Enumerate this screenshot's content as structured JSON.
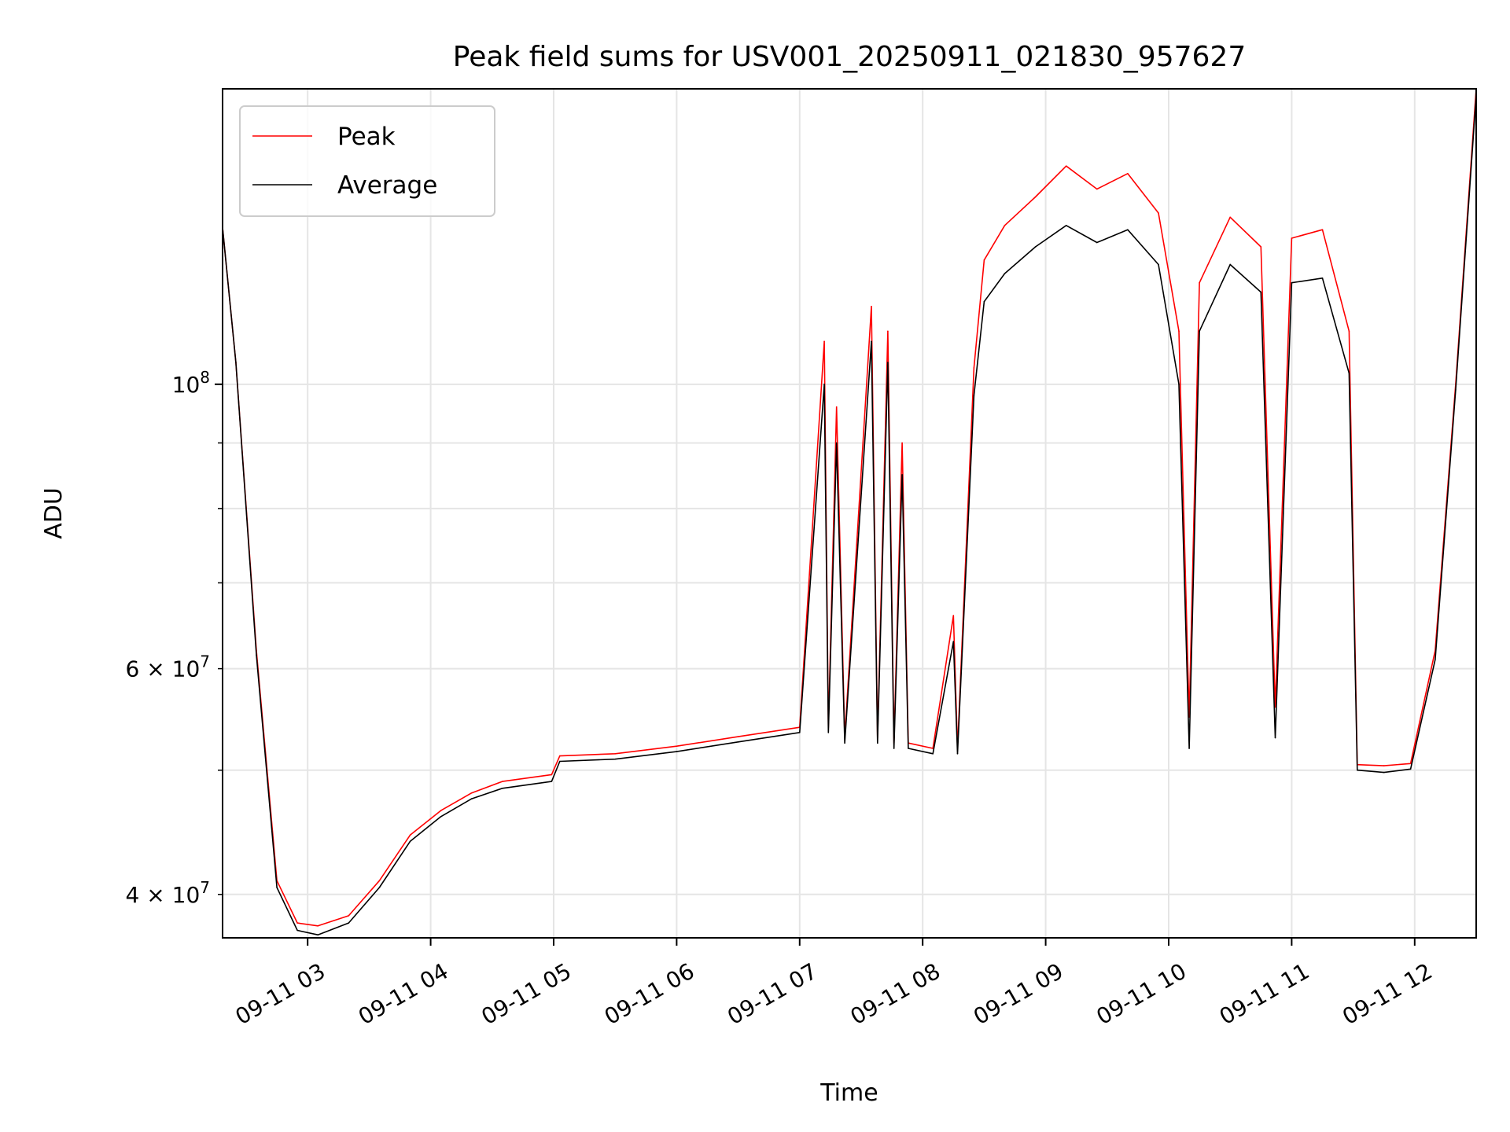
{
  "chart_data": {
    "type": "line",
    "title": "Peak field sums for USV001_20250911_021830_957627",
    "xlabel": "Time",
    "ylabel": "ADU",
    "yscale": "log",
    "xlim": [
      "2025-09-11T02:18:30",
      "2025-09-11T12:30:00"
    ],
    "ylim": [
      37000000,
      170000000
    ],
    "x_ticks": [
      {
        "t": "2025-09-11T03:00",
        "label": "09-11 03"
      },
      {
        "t": "2025-09-11T04:00",
        "label": "09-11 04"
      },
      {
        "t": "2025-09-11T05:00",
        "label": "09-11 05"
      },
      {
        "t": "2025-09-11T06:00",
        "label": "09-11 06"
      },
      {
        "t": "2025-09-11T07:00",
        "label": "09-11 07"
      },
      {
        "t": "2025-09-11T08:00",
        "label": "09-11 08"
      },
      {
        "t": "2025-09-11T09:00",
        "label": "09-11 09"
      },
      {
        "t": "2025-09-11T10:00",
        "label": "09-11 10"
      },
      {
        "t": "2025-09-11T11:00",
        "label": "09-11 11"
      },
      {
        "t": "2025-09-11T12:00",
        "label": "09-11 12"
      }
    ],
    "y_ticks_major": [
      {
        "value": 100000000,
        "base": "10",
        "exp": "8"
      }
    ],
    "y_ticks_minor": [
      {
        "value": 40000000,
        "mant": "4",
        "base": "10",
        "exp": "7"
      },
      {
        "value": 60000000,
        "mant": "6",
        "base": "10",
        "exp": "7"
      }
    ],
    "y_minor_unlabeled": [
      50000000,
      70000000,
      80000000,
      90000000
    ],
    "grid": true,
    "legend_position": "top-left",
    "series": [
      {
        "name": "Peak",
        "color": "#ff0000",
        "points": [
          [
            "2025-09-11T02:18",
            135000000
          ],
          [
            "2025-09-11T02:25",
            104000000
          ],
          [
            "2025-09-11T02:35",
            62000000
          ],
          [
            "2025-09-11T02:45",
            41000000
          ],
          [
            "2025-09-11T02:55",
            38000000
          ],
          [
            "2025-09-11T03:05",
            37800000
          ],
          [
            "2025-09-11T03:20",
            38500000
          ],
          [
            "2025-09-11T03:35",
            41000000
          ],
          [
            "2025-09-11T03:50",
            44500000
          ],
          [
            "2025-09-11T04:05",
            46500000
          ],
          [
            "2025-09-11T04:20",
            48000000
          ],
          [
            "2025-09-11T04:35",
            49000000
          ],
          [
            "2025-09-11T04:59",
            49600000
          ],
          [
            "2025-09-11T05:03",
            51300000
          ],
          [
            "2025-09-11T05:30",
            51500000
          ],
          [
            "2025-09-11T06:00",
            52200000
          ],
          [
            "2025-09-11T06:30",
            53100000
          ],
          [
            "2025-09-11T07:00",
            54000000
          ],
          [
            "2025-09-11T07:12",
            108000000
          ],
          [
            "2025-09-11T07:14",
            54000000
          ],
          [
            "2025-09-11T07:18",
            96000000
          ],
          [
            "2025-09-11T07:22",
            53000000
          ],
          [
            "2025-09-11T07:35",
            115000000
          ],
          [
            "2025-09-11T07:38",
            53000000
          ],
          [
            "2025-09-11T07:43",
            110000000
          ],
          [
            "2025-09-11T07:46",
            52500000
          ],
          [
            "2025-09-11T07:50",
            90000000
          ],
          [
            "2025-09-11T07:53",
            52500000
          ],
          [
            "2025-09-11T08:05",
            52000000
          ],
          [
            "2025-09-11T08:15",
            66000000
          ],
          [
            "2025-09-11T08:17",
            52000000
          ],
          [
            "2025-09-11T08:25",
            103000000
          ],
          [
            "2025-09-11T08:30",
            125000000
          ],
          [
            "2025-09-11T08:40",
            133000000
          ],
          [
            "2025-09-11T08:55",
            140000000
          ],
          [
            "2025-09-11T09:10",
            148000000
          ],
          [
            "2025-09-11T09:25",
            142000000
          ],
          [
            "2025-09-11T09:40",
            146000000
          ],
          [
            "2025-09-11T09:55",
            136000000
          ],
          [
            "2025-09-11T10:05",
            110000000
          ],
          [
            "2025-09-11T10:10",
            55000000
          ],
          [
            "2025-09-11T10:15",
            120000000
          ],
          [
            "2025-09-11T10:30",
            135000000
          ],
          [
            "2025-09-11T10:45",
            128000000
          ],
          [
            "2025-09-11T10:52",
            56000000
          ],
          [
            "2025-09-11T11:00",
            130000000
          ],
          [
            "2025-09-11T11:15",
            132000000
          ],
          [
            "2025-09-11T11:28",
            110000000
          ],
          [
            "2025-09-11T11:32",
            50500000
          ],
          [
            "2025-09-11T11:45",
            50400000
          ],
          [
            "2025-09-11T11:58",
            50600000
          ],
          [
            "2025-09-11T12:10",
            62000000
          ],
          [
            "2025-09-11T12:20",
            100000000
          ],
          [
            "2025-09-11T12:30",
            170000000
          ]
        ]
      },
      {
        "name": "Average",
        "color": "#000000",
        "points": [
          [
            "2025-09-11T02:18",
            135000000
          ],
          [
            "2025-09-11T02:25",
            104000000
          ],
          [
            "2025-09-11T02:35",
            61500000
          ],
          [
            "2025-09-11T02:45",
            40500000
          ],
          [
            "2025-09-11T02:55",
            37500000
          ],
          [
            "2025-09-11T03:05",
            37200000
          ],
          [
            "2025-09-11T03:20",
            38000000
          ],
          [
            "2025-09-11T03:35",
            40500000
          ],
          [
            "2025-09-11T03:50",
            44000000
          ],
          [
            "2025-09-11T04:05",
            46000000
          ],
          [
            "2025-09-11T04:20",
            47500000
          ],
          [
            "2025-09-11T04:35",
            48400000
          ],
          [
            "2025-09-11T04:59",
            49000000
          ],
          [
            "2025-09-11T05:03",
            50800000
          ],
          [
            "2025-09-11T05:30",
            51000000
          ],
          [
            "2025-09-11T06:00",
            51700000
          ],
          [
            "2025-09-11T06:30",
            52600000
          ],
          [
            "2025-09-11T07:00",
            53500000
          ],
          [
            "2025-09-11T07:12",
            100000000
          ],
          [
            "2025-09-11T07:14",
            53500000
          ],
          [
            "2025-09-11T07:18",
            90000000
          ],
          [
            "2025-09-11T07:22",
            52500000
          ],
          [
            "2025-09-11T07:35",
            108000000
          ],
          [
            "2025-09-11T07:38",
            52500000
          ],
          [
            "2025-09-11T07:43",
            104000000
          ],
          [
            "2025-09-11T07:46",
            52000000
          ],
          [
            "2025-09-11T07:50",
            85000000
          ],
          [
            "2025-09-11T07:53",
            52000000
          ],
          [
            "2025-09-11T08:05",
            51500000
          ],
          [
            "2025-09-11T08:15",
            63000000
          ],
          [
            "2025-09-11T08:17",
            51500000
          ],
          [
            "2025-09-11T08:25",
            98000000
          ],
          [
            "2025-09-11T08:30",
            116000000
          ],
          [
            "2025-09-11T08:40",
            122000000
          ],
          [
            "2025-09-11T08:55",
            128000000
          ],
          [
            "2025-09-11T09:10",
            133000000
          ],
          [
            "2025-09-11T09:25",
            129000000
          ],
          [
            "2025-09-11T09:40",
            132000000
          ],
          [
            "2025-09-11T09:55",
            124000000
          ],
          [
            "2025-09-11T10:05",
            100000000
          ],
          [
            "2025-09-11T10:10",
            52000000
          ],
          [
            "2025-09-11T10:15",
            110000000
          ],
          [
            "2025-09-11T10:30",
            124000000
          ],
          [
            "2025-09-11T10:45",
            118000000
          ],
          [
            "2025-09-11T10:52",
            53000000
          ],
          [
            "2025-09-11T11:00",
            120000000
          ],
          [
            "2025-09-11T11:15",
            121000000
          ],
          [
            "2025-09-11T11:28",
            102000000
          ],
          [
            "2025-09-11T11:32",
            50000000
          ],
          [
            "2025-09-11T11:45",
            49800000
          ],
          [
            "2025-09-11T11:58",
            50100000
          ],
          [
            "2025-09-11T12:10",
            61000000
          ],
          [
            "2025-09-11T12:20",
            99000000
          ],
          [
            "2025-09-11T12:30",
            168000000
          ]
        ]
      }
    ]
  }
}
